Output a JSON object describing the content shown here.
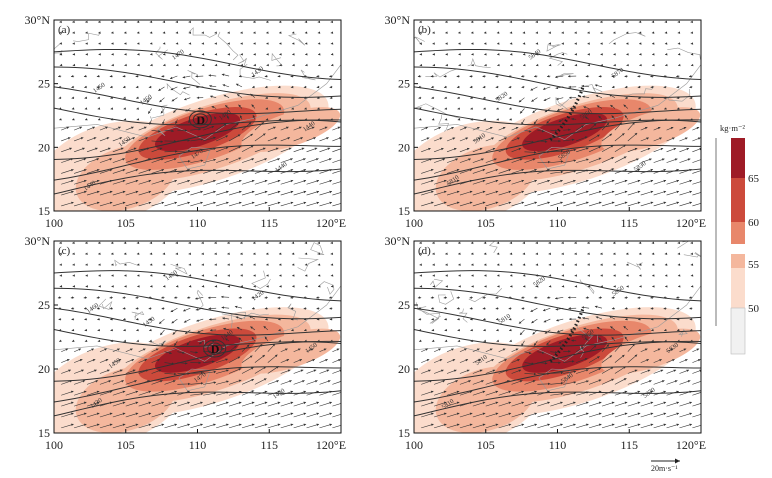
{
  "figure": {
    "axes": {
      "x_ticks": [
        "100",
        "105",
        "110",
        "115",
        "120°E"
      ],
      "x_values": [
        100,
        105,
        110,
        115,
        120
      ],
      "y_ticks": [
        "30°N",
        "25",
        "20",
        "15"
      ],
      "y_values": [
        30,
        25,
        20,
        15
      ],
      "lon_range": [
        100,
        120
      ],
      "lat_range": [
        15,
        30
      ]
    },
    "panels": [
      {
        "label": "(a)",
        "contour_labels": [
          "1440",
          "1450",
          "1460",
          "1470",
          "1470",
          "1480",
          "1430",
          "1440",
          "1440",
          "1450"
        ],
        "center_label": "D",
        "center_pos": [
          110.2,
          22.2
        ],
        "trough_line": false
      },
      {
        "label": "(b)",
        "contour_labels": [
          "5810",
          "5810",
          "5820",
          "5840",
          "5850",
          "5860",
          "5870",
          "5830"
        ],
        "center_label": "",
        "trough_line": true
      },
      {
        "label": "(c)",
        "contour_labels": [
          "1430",
          "1450",
          "1450",
          "1460",
          "1470",
          "1440",
          "1420",
          "1430",
          "1450",
          "1460"
        ],
        "center_label": "D",
        "center_pos": [
          111.2,
          21.6
        ],
        "trough_line": false
      },
      {
        "label": "(d)",
        "contour_labels": [
          "5810",
          "5810",
          "5810",
          "5820",
          "5840",
          "5850",
          "5860",
          "5870",
          "5830"
        ],
        "center_label": "",
        "trough_line": true
      }
    ],
    "legend": {
      "unit": "kg·m⁻²",
      "levels": [
        "65",
        "60",
        "55",
        "50"
      ],
      "colors": [
        "#9e1b26",
        "#cc4a3b",
        "#e8876b",
        "#f4b79d",
        "#fbdccc",
        "#f1f1f1"
      ]
    },
    "reference_vector": {
      "label": "20m·s⁻¹"
    },
    "colors": {
      "land_line": "#9a9a9a",
      "contour": "#333333",
      "arrow": "#333333"
    }
  }
}
